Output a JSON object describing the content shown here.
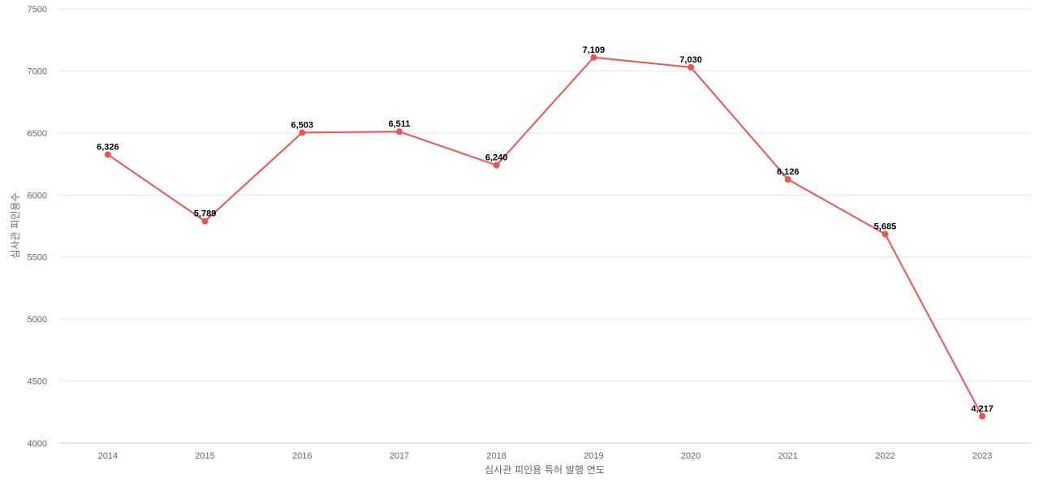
{
  "chart_data": {
    "type": "line",
    "title": "",
    "xlabel": "심사관 피인용 특허 발행 연도",
    "ylabel": "심사관 피인용수",
    "x": [
      "2014",
      "2015",
      "2016",
      "2017",
      "2018",
      "2019",
      "2020",
      "2021",
      "2022",
      "2023"
    ],
    "series": [
      {
        "values": [
          6326,
          5789,
          6503,
          6511,
          6240,
          7109,
          7030,
          6126,
          5685,
          4217
        ],
        "labels": [
          "6,326",
          "5,789",
          "6,503",
          "6,511",
          "6,240",
          "7,109",
          "7,030",
          "6,126",
          "5,685",
          "4,217"
        ],
        "color": "#ef5350"
      }
    ],
    "ylim": [
      4000,
      7500
    ],
    "yticks": [
      4000,
      4500,
      5000,
      5500,
      6000,
      6500,
      7000,
      7500
    ],
    "ytick_labels": [
      "4000",
      "4500",
      "5000",
      "5500",
      "6000",
      "6500",
      "7000",
      "7500"
    ],
    "grid": true,
    "legend": "none"
  }
}
